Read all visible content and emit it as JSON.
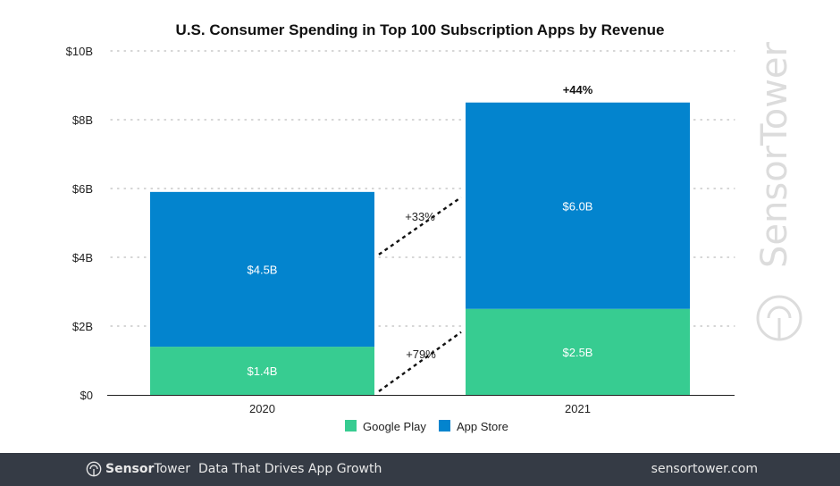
{
  "chart_data": {
    "type": "bar",
    "stacked": true,
    "title": "U.S. Consumer Spending in Top 100 Subscription Apps by Revenue",
    "xlabel": "",
    "ylabel": "",
    "categories": [
      "2020",
      "2021"
    ],
    "series": [
      {
        "name": "Google Play",
        "color": "#37cc91",
        "values": [
          1.4,
          2.5
        ],
        "labels": [
          "$1.4B",
          "$2.5B"
        ]
      },
      {
        "name": "App Store",
        "color": "#0384ce",
        "values": [
          4.5,
          6.0
        ],
        "labels": [
          "$4.5B",
          "$6.0B"
        ]
      }
    ],
    "ylim": [
      0,
      10
    ],
    "yticks": [
      0,
      2,
      4,
      6,
      8,
      10
    ],
    "ytick_labels": [
      "$0",
      "$2B",
      "$4B",
      "$6B",
      "$8B",
      "$10B"
    ],
    "grid": true,
    "legend": "bottom-center",
    "annotations": {
      "total_growth": "+44%",
      "app_store_growth": "+33%",
      "google_play_growth": "+79%"
    }
  },
  "watermark": "SensorTower",
  "footer": {
    "brand_bold": "Sensor",
    "brand_light": "Tower",
    "tagline": "Data That Drives App Growth",
    "site": "sensortower.com"
  }
}
